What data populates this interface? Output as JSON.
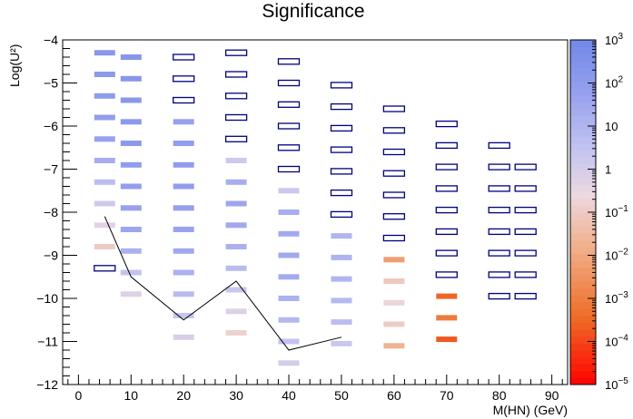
{
  "chart_data": {
    "type": "heatmap",
    "title": "Significance",
    "xlabel": "M(HN) (GeV)",
    "ylabel": "Log(U²)",
    "xlim": [
      -3,
      93
    ],
    "ylim": [
      -12,
      -4
    ],
    "xticks": [
      0,
      10,
      20,
      30,
      40,
      50,
      60,
      70,
      80,
      90
    ],
    "xtick_labels": [
      "0",
      "10",
      "20",
      "30",
      "40",
      "50",
      "60",
      "70",
      "80",
      "90"
    ],
    "yticks": [
      -12,
      -11,
      -10,
      -9,
      -8,
      -7,
      -6,
      -5,
      -4
    ],
    "ytick_labels": [
      "−12",
      "−11",
      "−10",
      "−9",
      "−8",
      "−7",
      "−6",
      "−5",
      "−4"
    ],
    "colorbar": {
      "scale": "log",
      "range": [
        1e-05,
        1000.0
      ],
      "tick_labels": [
        {
          "value": 1000,
          "label": "10",
          "exp": "3"
        },
        {
          "value": 100,
          "label": "10",
          "exp": "2"
        },
        {
          "value": 10,
          "label": "10",
          "exp": ""
        },
        {
          "value": 1,
          "label": "1",
          "exp": ""
        },
        {
          "value": 0.1,
          "label": "10",
          "exp": "−1"
        },
        {
          "value": 0.01,
          "label": "10",
          "exp": "−2"
        },
        {
          "value": 0.001,
          "label": "10",
          "exp": "−3"
        },
        {
          "value": 0.0001,
          "label": "10",
          "exp": "−4"
        },
        {
          "value": 1e-05,
          "label": "10",
          "exp": "−5"
        }
      ]
    },
    "colors": {
      "above_range": "#ffffff",
      "frame": "#000000",
      "box_outline": "#000080",
      "contour": "#000000"
    },
    "masses": [
      5,
      10,
      20,
      30,
      40,
      50,
      60,
      70,
      80,
      85
    ],
    "columns": [
      {
        "mass": 5,
        "cells": [
          {
            "y": -4.3,
            "v": 150
          },
          {
            "y": -4.8,
            "v": 130
          },
          {
            "y": -5.3,
            "v": 110
          },
          {
            "y": -5.8,
            "v": 90
          },
          {
            "y": -6.3,
            "v": 60
          },
          {
            "y": -6.8,
            "v": 20
          },
          {
            "y": -7.3,
            "v": 5
          },
          {
            "y": -7.8,
            "v": 1.5
          },
          {
            "y": -8.3,
            "v": 0.5
          },
          {
            "y": -8.8,
            "v": 0.1
          },
          {
            "y": -9.3,
            "v": 1500
          }
        ]
      },
      {
        "mass": 10,
        "cells": [
          {
            "y": -4.4,
            "v": 200
          },
          {
            "y": -4.9,
            "v": 180
          },
          {
            "y": -5.4,
            "v": 160
          },
          {
            "y": -5.9,
            "v": 140
          },
          {
            "y": -6.4,
            "v": 120
          },
          {
            "y": -6.9,
            "v": 100
          },
          {
            "y": -7.4,
            "v": 80
          },
          {
            "y": -7.9,
            "v": 60
          },
          {
            "y": -8.4,
            "v": 40
          },
          {
            "y": -8.9,
            "v": 15
          },
          {
            "y": -9.4,
            "v": 3
          },
          {
            "y": -9.9,
            "v": 0.6
          }
        ]
      },
      {
        "mass": 20,
        "cells": [
          {
            "y": -4.4,
            "v": 2000
          },
          {
            "y": -4.9,
            "v": 2000
          },
          {
            "y": -5.4,
            "v": 2000
          },
          {
            "y": -5.9,
            "v": 60
          },
          {
            "y": -6.4,
            "v": 90
          },
          {
            "y": -6.9,
            "v": 100
          },
          {
            "y": -7.4,
            "v": 90
          },
          {
            "y": -7.9,
            "v": 70
          },
          {
            "y": -8.4,
            "v": 50
          },
          {
            "y": -8.9,
            "v": 30
          },
          {
            "y": -9.4,
            "v": 15
          },
          {
            "y": -9.9,
            "v": 6
          },
          {
            "y": -10.4,
            "v": 2.5
          },
          {
            "y": -10.9,
            "v": 0.8
          }
        ]
      },
      {
        "mass": 30,
        "cells": [
          {
            "y": -4.3,
            "v": 2000
          },
          {
            "y": -4.8,
            "v": 2000
          },
          {
            "y": -5.3,
            "v": 2000
          },
          {
            "y": -5.8,
            "v": 2000
          },
          {
            "y": -6.3,
            "v": 2000
          },
          {
            "y": -6.8,
            "v": 1.5
          },
          {
            "y": -7.3,
            "v": 20
          },
          {
            "y": -7.8,
            "v": 40
          },
          {
            "y": -8.3,
            "v": 30
          },
          {
            "y": -8.8,
            "v": 15
          },
          {
            "y": -9.3,
            "v": 6
          },
          {
            "y": -9.8,
            "v": 2
          },
          {
            "y": -10.3,
            "v": 0.6
          },
          {
            "y": -10.8,
            "v": 0.15
          }
        ]
      },
      {
        "mass": 40,
        "cells": [
          {
            "y": -4.5,
            "v": 2000
          },
          {
            "y": -5.0,
            "v": 2000
          },
          {
            "y": -5.5,
            "v": 2000
          },
          {
            "y": -6.0,
            "v": 2000
          },
          {
            "y": -6.5,
            "v": 2000
          },
          {
            "y": -7.0,
            "v": 2000
          },
          {
            "y": -7.5,
            "v": 2
          },
          {
            "y": -8.0,
            "v": 20
          },
          {
            "y": -8.5,
            "v": 30
          },
          {
            "y": -9.0,
            "v": 30
          },
          {
            "y": -9.5,
            "v": 25
          },
          {
            "y": -10.0,
            "v": 15
          },
          {
            "y": -10.5,
            "v": 8
          },
          {
            "y": -11.0,
            "v": 3
          },
          {
            "y": -11.5,
            "v": 1
          }
        ]
      },
      {
        "mass": 50,
        "cells": [
          {
            "y": -5.05,
            "v": 2000
          },
          {
            "y": -5.55,
            "v": 2000
          },
          {
            "y": -6.05,
            "v": 2000
          },
          {
            "y": -6.55,
            "v": 2000
          },
          {
            "y": -7.05,
            "v": 2000
          },
          {
            "y": -7.55,
            "v": 2000
          },
          {
            "y": -8.05,
            "v": 2000
          },
          {
            "y": -8.55,
            "v": 10
          },
          {
            "y": -9.05,
            "v": 12
          },
          {
            "y": -9.55,
            "v": 10
          },
          {
            "y": -10.05,
            "v": 7
          },
          {
            "y": -10.55,
            "v": 5
          },
          {
            "y": -11.05,
            "v": 2
          }
        ]
      },
      {
        "mass": 60,
        "cells": [
          {
            "y": -5.6,
            "v": 2000
          },
          {
            "y": -6.1,
            "v": 2000
          },
          {
            "y": -6.6,
            "v": 2000
          },
          {
            "y": -7.1,
            "v": 2000
          },
          {
            "y": -7.6,
            "v": 2000
          },
          {
            "y": -8.1,
            "v": 2000
          },
          {
            "y": -8.6,
            "v": 2000
          },
          {
            "y": -9.1,
            "v": 0.006
          },
          {
            "y": -9.6,
            "v": 0.08
          },
          {
            "y": -10.1,
            "v": 0.2
          },
          {
            "y": -10.6,
            "v": 0.1
          },
          {
            "y": -11.1,
            "v": 0.02
          }
        ]
      },
      {
        "mass": 70,
        "cells": [
          {
            "y": -5.95,
            "v": 2000
          },
          {
            "y": -6.45,
            "v": 2000
          },
          {
            "y": -6.95,
            "v": 2000
          },
          {
            "y": -7.45,
            "v": 2000
          },
          {
            "y": -7.95,
            "v": 2000
          },
          {
            "y": -8.45,
            "v": 2000
          },
          {
            "y": -8.95,
            "v": 2000
          },
          {
            "y": -9.45,
            "v": 2000
          },
          {
            "y": -9.95,
            "v": 0.0003
          },
          {
            "y": -10.45,
            "v": 0.0008
          },
          {
            "y": -10.95,
            "v": 0.0002
          }
        ]
      },
      {
        "mass": 80,
        "cells": [
          {
            "y": -6.45,
            "v": 2000
          },
          {
            "y": -6.95,
            "v": 2000
          },
          {
            "y": -7.45,
            "v": 2000
          },
          {
            "y": -7.95,
            "v": 2000
          },
          {
            "y": -8.45,
            "v": 2000
          },
          {
            "y": -8.95,
            "v": 2000
          },
          {
            "y": -9.45,
            "v": 2000
          },
          {
            "y": -9.95,
            "v": 2000
          }
        ]
      },
      {
        "mass": 85,
        "cells": [
          {
            "y": -6.95,
            "v": 2000
          },
          {
            "y": -7.45,
            "v": 2000
          },
          {
            "y": -7.95,
            "v": 2000
          },
          {
            "y": -8.45,
            "v": 2000
          },
          {
            "y": -8.95,
            "v": 2000
          },
          {
            "y": -9.45,
            "v": 2000
          },
          {
            "y": -9.95,
            "v": 2000
          }
        ]
      }
    ],
    "contour": [
      {
        "x": 5,
        "y": -8.1
      },
      {
        "x": 10,
        "y": -9.5
      },
      {
        "x": 20,
        "y": -10.5
      },
      {
        "x": 30,
        "y": -9.6
      },
      {
        "x": 40,
        "y": -11.2
      },
      {
        "x": 50,
        "y": -10.9
      }
    ]
  }
}
